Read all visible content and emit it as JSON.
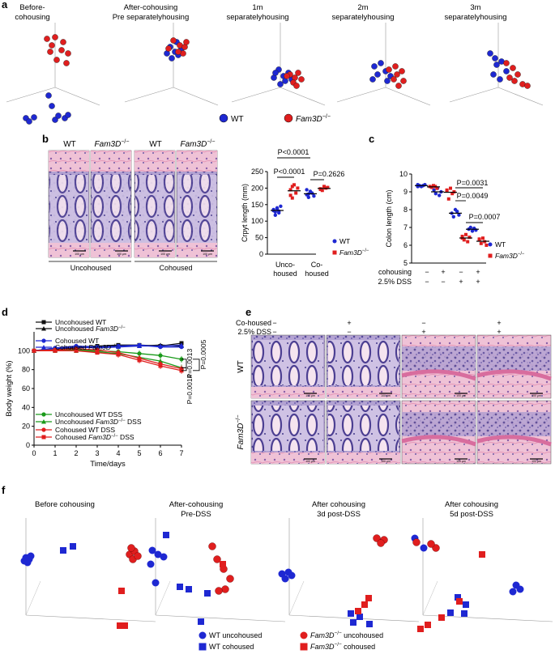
{
  "panels": {
    "a": {
      "letter": "a",
      "titles": [
        [
          "Before-",
          "cohousing"
        ],
        [
          "After-cohousing",
          "Pre separatelyhousing"
        ],
        [
          "1m",
          "separatelyhousing"
        ],
        [
          "2m",
          "separatelyhousing"
        ],
        [
          "3m",
          "separatelyhousing"
        ]
      ],
      "legend": {
        "wt": "WT",
        "ko": "Fam3D",
        "ko_sup": "−/−"
      }
    },
    "b": {
      "letter": "b",
      "col_labels": [
        "WT",
        "Fam3D",
        "WT",
        "Fam3D"
      ],
      "ko_sup": "−/−",
      "group_labels": [
        "Uncohoused",
        "Cohoused"
      ],
      "scale_bar": "100 μm"
    },
    "c": {
      "letter": "c",
      "row_labels": [
        "cohousing",
        "2.5% DSS"
      ],
      "row_values": [
        [
          "−",
          "+",
          "−",
          "+"
        ],
        [
          "−",
          "−",
          "+",
          "+"
        ]
      ]
    },
    "d": {
      "letter": "d",
      "legend_top": [
        "Uncohoused WT",
        "Uncohoused Fam3D",
        "Cohoused WT",
        "Cohoused Fam3D"
      ],
      "legend_bottom": [
        "Uncohoused WT DSS",
        "Uncohoused Fam3D",
        "Cohoused WT DSS",
        "Cohoused Fam3D"
      ],
      "ko_sup": "−/−",
      "dss": "DSS"
    },
    "e": {
      "letter": "e",
      "row_labels": [
        "Co-housed",
        "2.5% DSS"
      ],
      "row_values": [
        [
          "−",
          "+",
          "−",
          "+"
        ],
        [
          "−",
          "−",
          "+",
          "+"
        ]
      ],
      "side_labels": [
        "WT",
        "Fam3D"
      ],
      "ko_sup": "−/−",
      "scale_bar": "100 μm"
    },
    "f": {
      "letter": "f",
      "titles": [
        [
          "Before cohousing"
        ],
        [
          "After-cohousing",
          "Pre-DSS"
        ],
        [
          "After cohousing",
          "3d post-DSS"
        ],
        [
          "After cohousing",
          "5d post-DSS"
        ]
      ],
      "legend": [
        "WT uncohoused",
        "Fam3D",
        "WT cohoused",
        "Fam3D"
      ],
      "legend_suffix": [
        "",
        " uncohoused",
        "",
        " cohoused"
      ],
      "ko_sup": "−/−"
    }
  },
  "colors": {
    "wt": "#1e28d2",
    "ko": "#e01e1e",
    "green": "#1a9a1a",
    "black": "#111111",
    "he_pink": "#e8a8c4",
    "he_purple": "#5a4f9c"
  },
  "chart_data": [
    {
      "type": "scatter",
      "panel": "b",
      "ylabel": "Crpyt length (mm)",
      "ylim": [
        0,
        250
      ],
      "yticks": [
        0,
        50,
        100,
        150,
        200,
        250
      ],
      "categories": [
        "Unco-housed",
        "Co-housed"
      ],
      "series": [
        {
          "name": "WT",
          "values": [
            [
              132,
              118,
              140,
              125,
              145,
              135,
              128,
              138,
              130
            ],
            [
              180,
              172,
              190,
              185,
              176,
              195,
              182
            ]
          ]
        },
        {
          "name": "Fam3D−/−",
          "values": [
            [
              195,
              170,
              210,
              185,
              200,
              178,
              205
            ],
            [
              198,
              193,
              205,
              200,
              202,
              196
            ]
          ]
        }
      ],
      "annotations": [
        {
          "text": "P<0.0001",
          "between": "WT unco vs WT co",
          "level": 1
        },
        {
          "text": "P<0.0001",
          "between": "WT unco vs KO unco",
          "level": 0
        },
        {
          "text": "P=0.2626",
          "between": "WT co vs KO co",
          "level": 0
        }
      ]
    },
    {
      "type": "scatter",
      "panel": "c",
      "ylabel": "Colon length (cm)",
      "ylim": [
        5,
        10
      ],
      "yticks": [
        5,
        6,
        7,
        8,
        9,
        10
      ],
      "series": [
        {
          "name": "WT",
          "values": [
            [
              9.4,
              9.35,
              9.3,
              9.35,
              9.4,
              9.3
            ],
            [
              9.1,
              8.9,
              9.2,
              8.8,
              9.0
            ],
            [
              7.8,
              7.6,
              8.0,
              7.9,
              7.7
            ],
            [
              6.9,
              7.0,
              6.8,
              6.95,
              6.85
            ]
          ]
        },
        {
          "name": "Fam3D−/−",
          "values": [
            [
              9.3,
              9.25,
              9.35,
              9.3,
              9.2
            ],
            [
              9.1,
              8.6,
              9.2,
              8.9,
              9.0,
              9.05
            ],
            [
              6.5,
              6.3,
              6.6,
              6.2,
              6.45,
              6.4
            ],
            [
              6.3,
              6.1,
              6.4,
              6.2,
              6.0,
              6.35
            ]
          ]
        }
      ],
      "annotations": [
        {
          "text": "P=0.0031"
        },
        {
          "text": "P=0.0049"
        },
        {
          "text": "P=0.0007"
        }
      ]
    },
    {
      "type": "line",
      "panel": "d",
      "xlabel": "Time/days",
      "ylabel": "Body weight (%)",
      "xlim": [
        0,
        7
      ],
      "ylim": [
        0,
        120
      ],
      "x": [
        0,
        1,
        2,
        3,
        4,
        5,
        6,
        7
      ],
      "xticks": [
        0,
        1,
        2,
        3,
        4,
        5,
        6,
        7
      ],
      "yticks": [
        0,
        20,
        40,
        60,
        80,
        100
      ],
      "series": [
        {
          "name": "Uncohoused WT",
          "color": "#111111",
          "marker": "square",
          "values": [
            100,
            102,
            104,
            105,
            106,
            106,
            105,
            108
          ]
        },
        {
          "name": "Uncohoused Fam3D−/−",
          "color": "#111111",
          "marker": "triangle",
          "values": [
            100,
            101,
            103,
            104,
            105,
            105,
            106,
            105
          ]
        },
        {
          "name": "Cohoused WT",
          "color": "#1e28d2",
          "marker": "circle",
          "values": [
            100,
            103,
            105,
            104,
            105,
            106,
            104,
            104
          ]
        },
        {
          "name": "Cohoused Fam3D−/−",
          "color": "#1e28d2",
          "marker": "triangle",
          "values": [
            100,
            102,
            104,
            103,
            104,
            105,
            105,
            106
          ]
        },
        {
          "name": "Uncohoused WT DSS",
          "color": "#1a9a1a",
          "marker": "circle",
          "values": [
            100,
            101,
            101,
            100,
            99,
            97,
            95,
            91
          ]
        },
        {
          "name": "Uncohoused Fam3D−/− DSS",
          "color": "#1a9a1a",
          "marker": "triangle",
          "values": [
            100,
            100,
            100,
            99,
            97,
            93,
            89,
            82
          ]
        },
        {
          "name": "Cohoused WT DSS",
          "color": "#e01e1e",
          "marker": "circle",
          "values": [
            100,
            101,
            102,
            101,
            98,
            92,
            86,
            81
          ]
        },
        {
          "name": "Cohoused Fam3D−/− DSS",
          "color": "#e01e1e",
          "marker": "square",
          "values": [
            100,
            100,
            100,
            98,
            96,
            90,
            84,
            79
          ]
        }
      ],
      "annotations": [
        {
          "text": "P=0.0013"
        },
        {
          "text": "P=0.0014"
        },
        {
          "text": "P=0.0005"
        }
      ]
    }
  ]
}
